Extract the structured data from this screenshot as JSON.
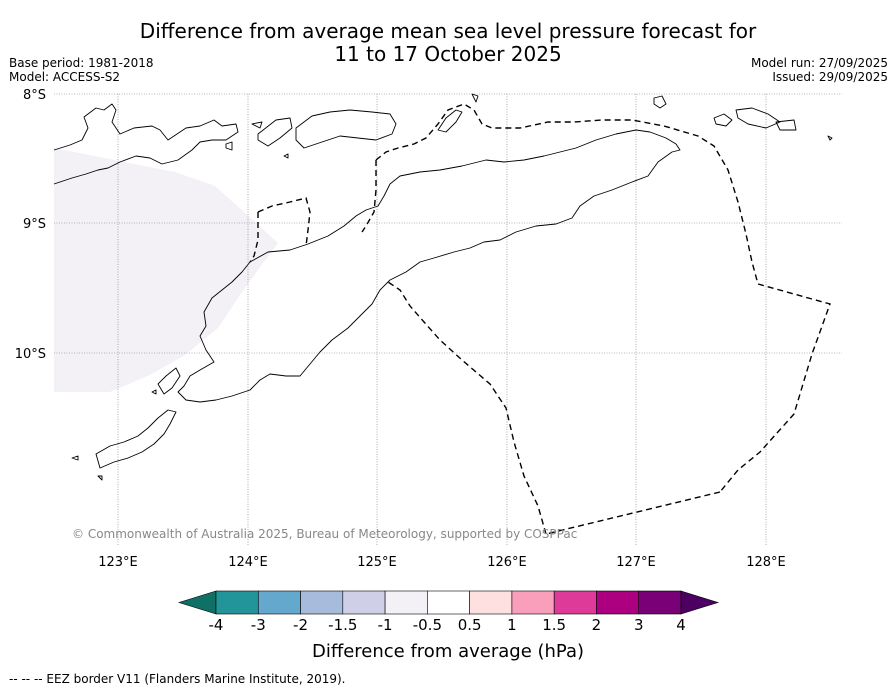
{
  "title": {
    "line1": "Difference from average mean sea level pressure forecast for",
    "line2": "11 to 17 October 2025"
  },
  "meta": {
    "base_period": "Base period: 1981-2018",
    "model": "Model: ACCESS-S2",
    "model_run": "Model run: 27/09/2025",
    "issued": "Issued: 29/09/2025"
  },
  "map": {
    "lat_labels": [
      "8°S",
      "9°S",
      "10°S"
    ],
    "lon_labels": [
      "123°E",
      "124°E",
      "125°E",
      "126°E",
      "127°E",
      "128°E"
    ],
    "copyright": "© Commonwealth of Australia 2025, Bureau of Meteorology, supported by COSPPac",
    "anomaly_region_value": "-1 to -0.5"
  },
  "colorbar": {
    "label": "Difference from average (hPa)",
    "ticks": [
      "-4",
      "-3",
      "-2",
      "-1.5",
      "-1",
      "-0.5",
      "0.5",
      "1",
      "1.5",
      "2",
      "3",
      "4"
    ],
    "colors": [
      "#0f7066",
      "#22959a",
      "#64a8cd",
      "#a7bbdd",
      "#cfd0e7",
      "#f3f0f6",
      "#ffffff",
      "#ffe0e0",
      "#f99fbb",
      "#dd3a9a",
      "#ad0081",
      "#7a0077",
      "#4b0062"
    ]
  },
  "footnote": "--  --  -- EEZ border V11 (Flanders Marine Institute, 2019)."
}
